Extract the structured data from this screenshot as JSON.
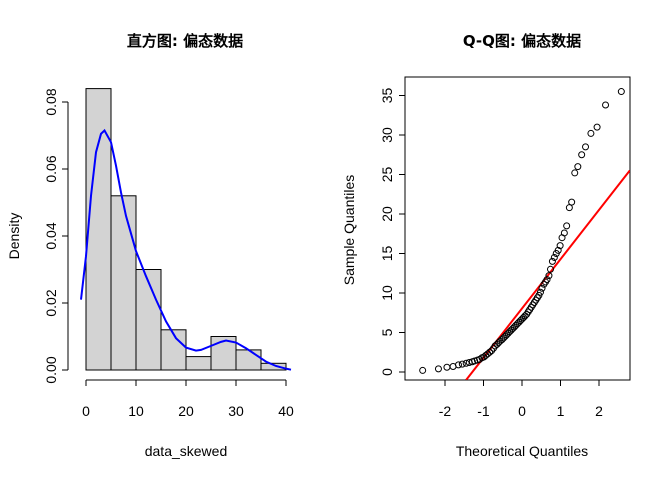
{
  "chart_data": [
    {
      "type": "bar",
      "subtype": "histogram-with-density",
      "title": "直方图: 偏态数据",
      "xlabel": "data_skewed",
      "ylabel": "Density",
      "xlim": [
        -2,
        42
      ],
      "ylim": [
        0,
        0.088
      ],
      "xticks": [
        "0",
        "10",
        "20",
        "30",
        "40"
      ],
      "yticks": [
        "0.00",
        "0.02",
        "0.04",
        "0.06",
        "0.08"
      ],
      "bins": [
        {
          "x0": 0,
          "x1": 5,
          "density": 0.084
        },
        {
          "x0": 5,
          "x1": 10,
          "density": 0.052
        },
        {
          "x0": 10,
          "x1": 15,
          "density": 0.03
        },
        {
          "x0": 15,
          "x1": 20,
          "density": 0.012
        },
        {
          "x0": 20,
          "x1": 25,
          "density": 0.004
        },
        {
          "x0": 25,
          "x1": 30,
          "density": 0.01
        },
        {
          "x0": 30,
          "x1": 35,
          "density": 0.006
        },
        {
          "x0": 35,
          "x1": 40,
          "density": 0.002
        }
      ],
      "bar_color": "#d3d3d3",
      "density_curve": {
        "color": "#0000ff",
        "x": [
          -1,
          0,
          1,
          2,
          3,
          3.7,
          5,
          6,
          7,
          8,
          10,
          12,
          14,
          16,
          18,
          20,
          22,
          23,
          25,
          27,
          28,
          30,
          32,
          34,
          36,
          38,
          40,
          41
        ],
        "y": [
          0.021,
          0.034,
          0.052,
          0.065,
          0.0705,
          0.0715,
          0.068,
          0.061,
          0.053,
          0.046,
          0.0355,
          0.028,
          0.021,
          0.0145,
          0.0095,
          0.0067,
          0.0058,
          0.006,
          0.0072,
          0.0084,
          0.0088,
          0.0082,
          0.0065,
          0.0045,
          0.0025,
          0.0012,
          0.0004,
          0.0001
        ]
      }
    },
    {
      "type": "scatter",
      "subtype": "qq-plot",
      "title": "Q-Q图: 偏态数据",
      "xlabel": "Theoretical Quantiles",
      "ylabel": "Sample Quantiles",
      "xlim": [
        -2.8,
        2.8
      ],
      "ylim": [
        -1,
        36.5
      ],
      "xticks": [
        "-2",
        "-1",
        "0",
        "1",
        "2"
      ],
      "yticks": [
        "0",
        "5",
        "10",
        "15",
        "20",
        "25",
        "30",
        "35"
      ],
      "points": {
        "x": [
          -2.58,
          -2.17,
          -1.95,
          -1.79,
          -1.65,
          -1.55,
          -1.45,
          -1.37,
          -1.29,
          -1.23,
          -1.16,
          -1.1,
          -1.04,
          -0.99,
          -0.94,
          -0.89,
          -0.84,
          -0.79,
          -0.74,
          -0.7,
          -0.65,
          -0.61,
          -0.57,
          -0.52,
          -0.48,
          -0.44,
          -0.4,
          -0.36,
          -0.32,
          -0.28,
          -0.24,
          -0.2,
          -0.16,
          -0.12,
          -0.08,
          -0.04,
          0.0,
          0.04,
          0.08,
          0.12,
          0.16,
          0.2,
          0.24,
          0.28,
          0.32,
          0.36,
          0.4,
          0.44,
          0.48,
          0.52,
          0.57,
          0.61,
          0.65,
          0.7,
          0.74,
          0.79,
          0.84,
          0.89,
          0.94,
          0.99,
          1.04,
          1.1,
          1.16,
          1.23,
          1.29,
          1.37,
          1.45,
          1.55,
          1.65,
          1.79,
          1.95,
          2.17,
          2.58
        ],
        "y": [
          0.2,
          0.4,
          0.6,
          0.7,
          0.9,
          1.0,
          1.1,
          1.2,
          1.3,
          1.4,
          1.5,
          1.6,
          1.8,
          1.9,
          2.1,
          2.3,
          2.5,
          2.7,
          3.0,
          3.3,
          3.5,
          3.7,
          3.9,
          4.1,
          4.3,
          4.5,
          4.7,
          4.9,
          5.1,
          5.3,
          5.5,
          5.7,
          5.9,
          6.1,
          6.3,
          6.5,
          6.7,
          6.9,
          7.1,
          7.3,
          7.6,
          7.9,
          8.2,
          8.5,
          8.8,
          9.1,
          9.4,
          9.7,
          10.1,
          10.6,
          11.1,
          11.4,
          11.7,
          12.2,
          13.0,
          14.0,
          14.5,
          15.0,
          15.4,
          16.0,
          17.0,
          17.6,
          18.5,
          20.8,
          21.5,
          25.2,
          26.0,
          27.5,
          28.5,
          30.2,
          31.0,
          33.8,
          35.5
        ]
      },
      "reference_line": {
        "color": "#ff0000",
        "x": [
          -1.45,
          2.8
        ],
        "y": [
          -1,
          25.5
        ]
      }
    }
  ]
}
